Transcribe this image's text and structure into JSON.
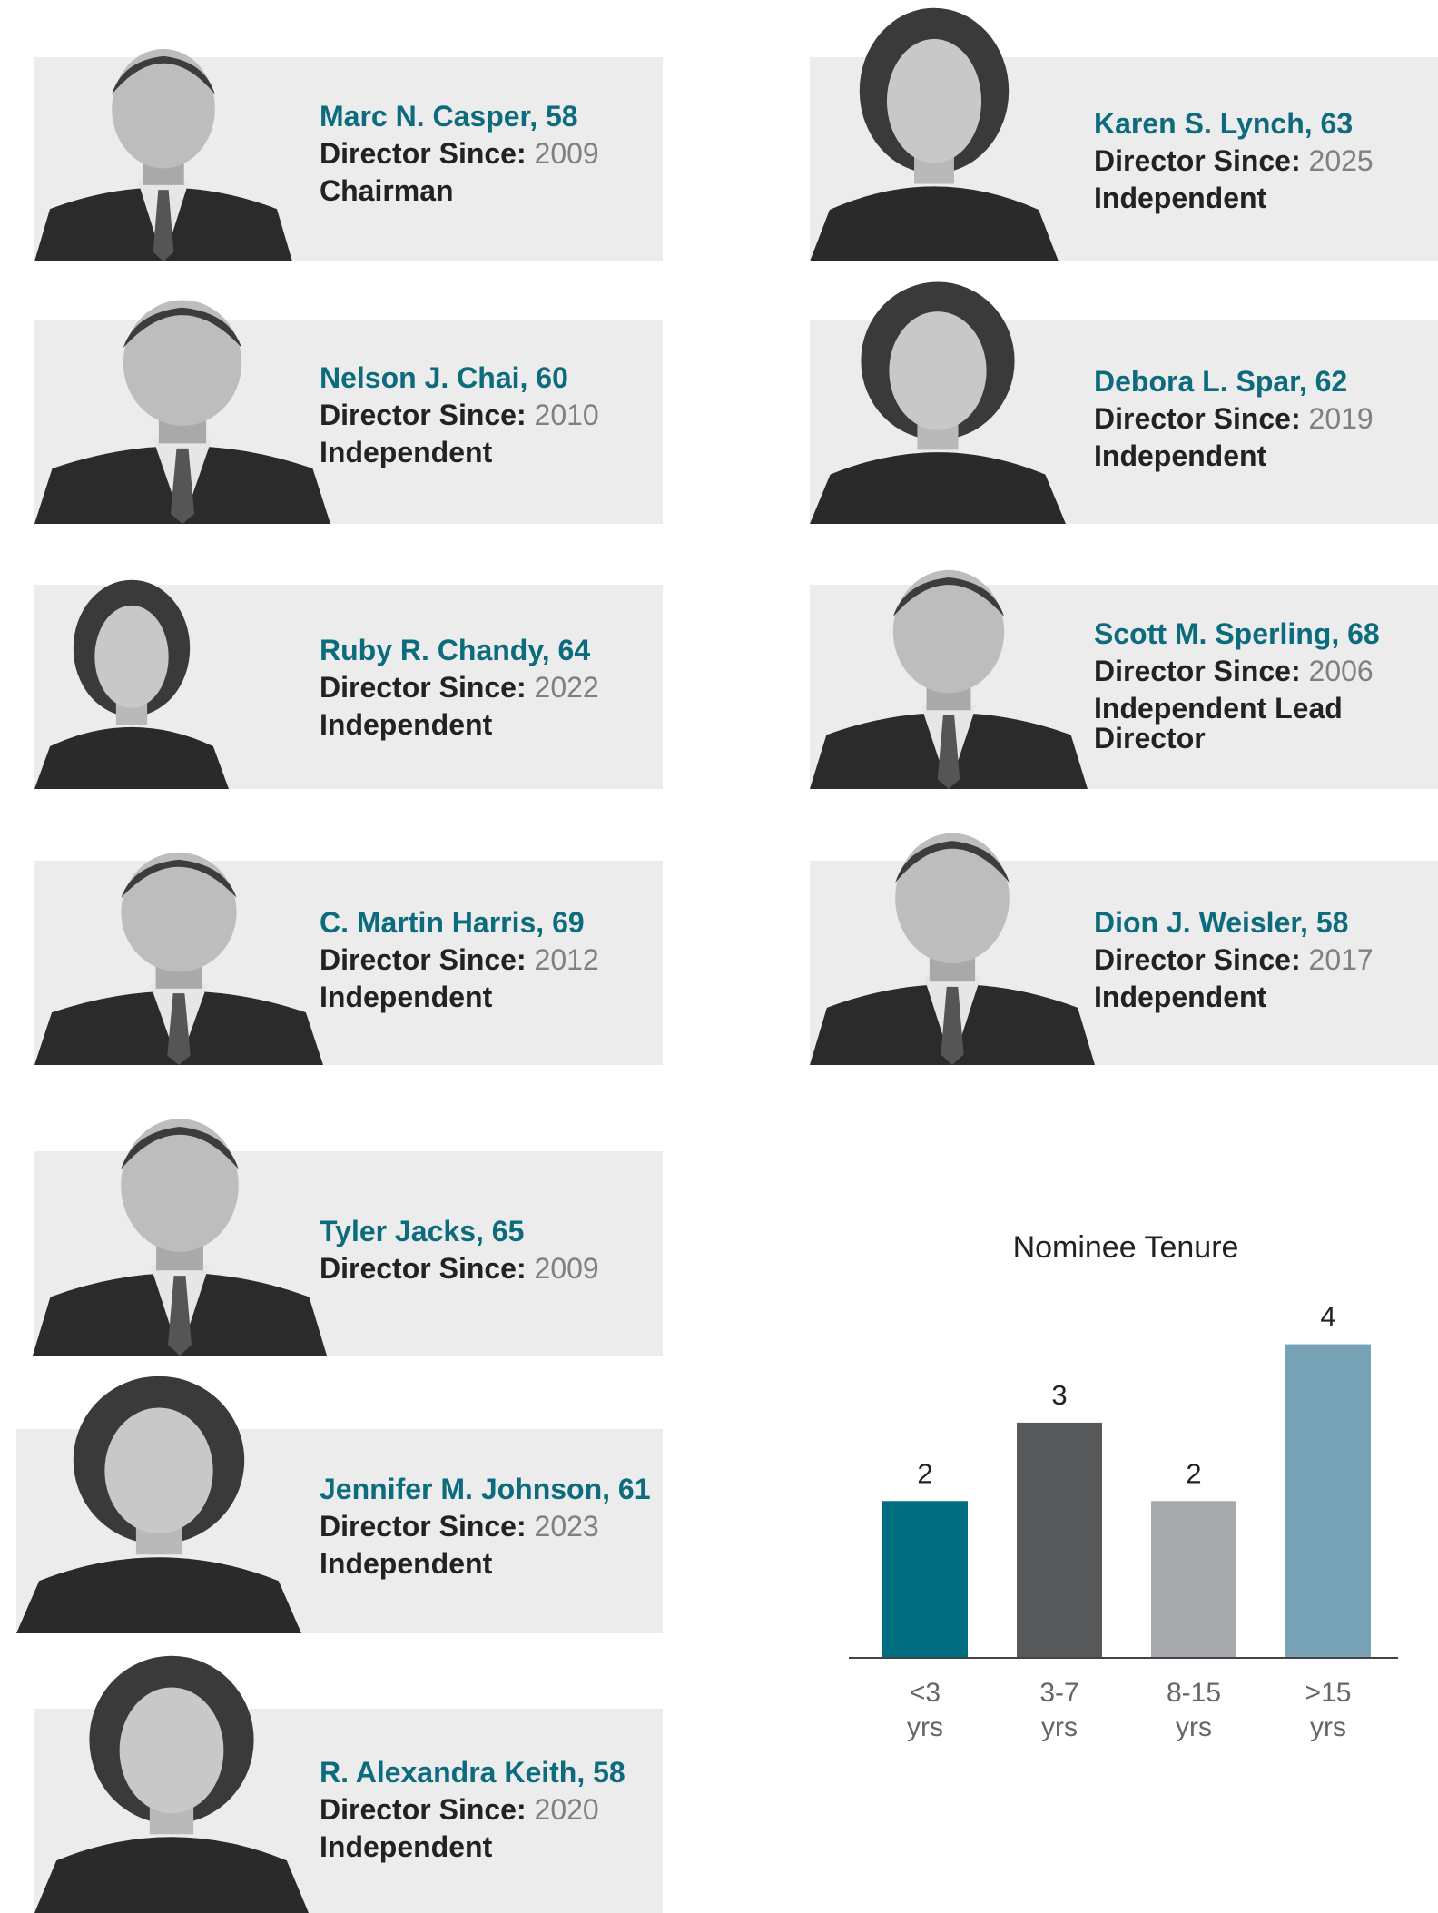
{
  "directors": [
    {
      "name": "Marc N. Casper, 58",
      "since_label": "Director Since:",
      "since_year": "2009",
      "role": "Chairman",
      "photo": "man-portrait"
    },
    {
      "name": "Nelson J. Chai, 60",
      "since_label": "Director Since:",
      "since_year": "2010",
      "role": "Independent",
      "photo": "man-portrait"
    },
    {
      "name": "Ruby R. Chandy, 64",
      "since_label": "Director Since:",
      "since_year": "2022",
      "role": "Independent",
      "photo": "woman-portrait"
    },
    {
      "name": "C. Martin Harris, 69",
      "since_label": "Director Since:",
      "since_year": "2012",
      "role": "Independent",
      "photo": "man-portrait"
    },
    {
      "name": "Tyler Jacks, 65",
      "since_label": "Director Since:",
      "since_year": "2009",
      "role": "",
      "photo": "man-portrait"
    },
    {
      "name": "Jennifer M. Johnson, 61",
      "since_label": "Director Since:",
      "since_year": "2023",
      "role": "Independent",
      "photo": "woman-portrait"
    },
    {
      "name": "R. Alexandra Keith, 58",
      "since_label": "Director Since:",
      "since_year": "2020",
      "role": "Independent",
      "photo": "woman-portrait"
    },
    {
      "name": "Karen S. Lynch, 63",
      "since_label": "Director Since:",
      "since_year": "2025",
      "role": "Independent",
      "photo": "woman-portrait"
    },
    {
      "name": "Debora L. Spar, 62",
      "since_label": "Director Since:",
      "since_year": "2019",
      "role": "Independent",
      "photo": "woman-portrait"
    },
    {
      "name": "Scott M. Sperling, 68",
      "since_label": "Director Since:",
      "since_year": "2006",
      "role": "Independent Lead Director",
      "photo": "man-portrait"
    },
    {
      "name": "Dion J. Weisler, 58",
      "since_label": "Director Since:",
      "since_year": "2017",
      "role": "Independent",
      "photo": "man-portrait"
    }
  ],
  "chart_data": {
    "type": "bar",
    "title": "Nominee Tenure",
    "categories": [
      "<3 yrs",
      "3-7 yrs",
      "8-15 yrs",
      ">15 yrs"
    ],
    "category_lines": [
      [
        "<3",
        "yrs"
      ],
      [
        "3-7",
        "yrs"
      ],
      [
        "8-15",
        "yrs"
      ],
      [
        ">15",
        "yrs"
      ]
    ],
    "values": [
      2,
      3,
      2,
      4
    ],
    "value_labels": [
      "2",
      "3",
      "2",
      "4"
    ],
    "colors": [
      "#006d80",
      "#58595b",
      "#a7a9ac",
      "#78a2b5"
    ],
    "ylim": [
      0,
      4.4
    ],
    "grid": false,
    "xlabel": "",
    "ylabel": ""
  },
  "colors": {
    "name": "#0d6b7e",
    "panel": "#ececec",
    "year": "#808080"
  }
}
